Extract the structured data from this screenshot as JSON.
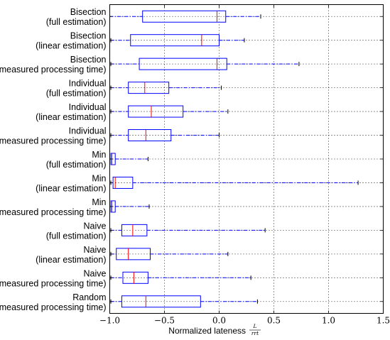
{
  "chart_data": {
    "type": "boxplot",
    "orientation": "horizontal",
    "xlabel": "Normalized lateness",
    "xlabel_fraction": {
      "numerator": "L",
      "denominator": "rrt"
    },
    "xlim": [
      -1.0,
      1.5
    ],
    "xticks": [
      -1.0,
      -0.5,
      0.0,
      0.5,
      1.0,
      1.5
    ],
    "xtick_labels": [
      "−1.0",
      "−0.5",
      "0.0",
      "0.5",
      "1.0",
      "1.5"
    ],
    "grid": true,
    "colors": {
      "box": "#0000ff",
      "median": "#ff0000",
      "whisker": "#0000ff",
      "cap": "#000000",
      "grid": "#000000"
    },
    "boxes": [
      {
        "label": [
          "Bisection",
          "(full estimation)"
        ],
        "whislo": -1.0,
        "q1": -0.7,
        "median": -0.02,
        "q3": 0.06,
        "whishi": 0.38
      },
      {
        "label": [
          "Bisection",
          "(linear estimation)"
        ],
        "whislo": -0.99,
        "q1": -0.81,
        "median": -0.16,
        "q3": 0.0,
        "whishi": 0.23
      },
      {
        "label": [
          "Bisection",
          "(measured processing time)"
        ],
        "whislo": -0.99,
        "q1": -0.73,
        "median": -0.02,
        "q3": 0.07,
        "whishi": 0.73
      },
      {
        "label": [
          "Individual",
          "(full estimation)"
        ],
        "whislo": -0.99,
        "q1": -0.83,
        "median": -0.68,
        "q3": -0.46,
        "whishi": 0.02
      },
      {
        "label": [
          "Individual",
          "(linear estimation)"
        ],
        "whislo": -0.99,
        "q1": -0.83,
        "median": -0.62,
        "q3": -0.33,
        "whishi": 0.08
      },
      {
        "label": [
          "Individual",
          "(measured processing time)"
        ],
        "whislo": -0.99,
        "q1": -0.83,
        "median": -0.67,
        "q3": -0.44,
        "whishi": 0.0
      },
      {
        "label": [
          "Min",
          "(full estimation)"
        ],
        "whislo": -1.0,
        "q1": -0.99,
        "median": -0.98,
        "q3": -0.95,
        "whishi": -0.65
      },
      {
        "label": [
          "Min",
          "(linear estimation)"
        ],
        "whislo": -0.99,
        "q1": -0.97,
        "median": -0.95,
        "q3": -0.79,
        "whishi": 1.27
      },
      {
        "label": [
          "Min",
          "(measured processing time)"
        ],
        "whislo": -1.0,
        "q1": -0.99,
        "median": -0.98,
        "q3": -0.95,
        "whishi": -0.64
      },
      {
        "label": [
          "Naive",
          "(full estimation)"
        ],
        "whislo": -0.99,
        "q1": -0.89,
        "median": -0.79,
        "q3": -0.66,
        "whishi": 0.42
      },
      {
        "label": [
          "Naive",
          "(linear estimation)"
        ],
        "whislo": -0.99,
        "q1": -0.94,
        "median": -0.83,
        "q3": -0.63,
        "whishi": 0.08
      },
      {
        "label": [
          "Naive",
          "(measured processing time)"
        ],
        "whislo": -0.99,
        "q1": -0.88,
        "median": -0.78,
        "q3": -0.65,
        "whishi": 0.29
      },
      {
        "label": [
          "Random",
          "(measured processing time)"
        ],
        "whislo": -0.99,
        "q1": -0.89,
        "median": -0.67,
        "q3": -0.17,
        "whishi": 0.35
      }
    ]
  }
}
